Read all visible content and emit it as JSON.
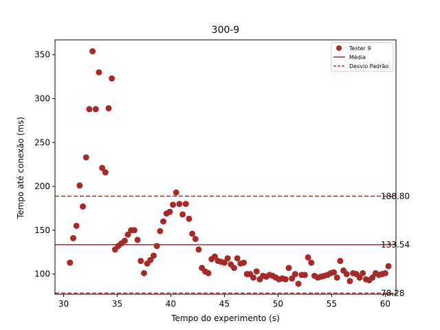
{
  "chart_data": {
    "type": "scatter",
    "title": "300-9",
    "xlabel": "Tempo do experimento (s)",
    "ylabel": "Tempo até conexão (ms)",
    "xlim": [
      29.2,
      61.0
    ],
    "ylim": [
      77,
      367
    ],
    "xticks": [
      30,
      35,
      40,
      45,
      50,
      55,
      60
    ],
    "yticks": [
      100,
      150,
      200,
      250,
      300,
      350
    ],
    "grid": false,
    "legend_position": "top-right",
    "colors": {
      "points": "#a52a2a",
      "mean": "#a52a2a",
      "std": "#a52a2a"
    },
    "series": [
      {
        "name": "Tester 9",
        "x": [
          30.6,
          30.9,
          31.2,
          31.5,
          31.8,
          32.1,
          32.4,
          32.7,
          33.0,
          33.3,
          33.6,
          33.9,
          34.2,
          34.5,
          34.8,
          35.1,
          35.4,
          35.7,
          36.0,
          36.3,
          36.6,
          36.9,
          37.2,
          37.5,
          37.8,
          38.1,
          38.4,
          38.7,
          39.0,
          39.3,
          39.6,
          39.9,
          40.2,
          40.5,
          40.8,
          41.1,
          41.4,
          41.7,
          42.0,
          42.3,
          42.6,
          42.9,
          43.2,
          43.5,
          43.8,
          44.1,
          44.4,
          44.7,
          45.0,
          45.3,
          45.6,
          45.9,
          46.2,
          46.5,
          46.8,
          47.1,
          47.4,
          47.7,
          48.0,
          48.3,
          48.6,
          48.9,
          49.2,
          49.5,
          49.8,
          50.1,
          50.4,
          50.7,
          51.0,
          51.3,
          51.6,
          51.9,
          52.2,
          52.5,
          52.8,
          53.1,
          53.4,
          53.7,
          54.0,
          54.3,
          54.6,
          54.9,
          55.2,
          55.5,
          55.8,
          56.1,
          56.4,
          56.7,
          57.0,
          57.3,
          57.6,
          57.9,
          58.2,
          58.5,
          58.8,
          59.1,
          59.4,
          59.7,
          60.0,
          60.3
        ],
        "y": [
          113,
          141,
          155,
          201,
          177,
          233,
          288,
          354,
          288,
          330,
          221,
          216,
          289,
          323,
          128,
          132,
          135,
          138,
          145,
          150,
          150,
          139,
          115,
          101,
          112,
          116,
          121,
          132,
          149,
          160,
          169,
          171,
          179,
          193,
          180,
          168,
          180,
          163,
          146,
          140,
          128,
          107,
          103,
          101,
          117,
          120,
          115,
          114,
          113,
          118,
          111,
          107,
          118,
          112,
          113,
          100,
          100,
          96,
          103,
          94,
          98,
          97,
          99,
          98,
          96,
          94,
          95,
          94,
          107,
          95,
          100,
          89,
          99,
          99,
          119,
          113,
          98,
          96,
          97,
          98,
          99,
          101,
          102,
          96,
          115,
          104,
          100,
          92,
          101,
          100,
          96,
          101,
          94,
          93,
          96,
          101,
          99,
          100,
          101,
          109
        ]
      }
    ],
    "reference_lines": [
      {
        "name": "Média",
        "y": 133.54,
        "label": "133.54",
        "style": "solid"
      },
      {
        "name": "Desvio Padrão",
        "y": 188.8,
        "label": "188.80",
        "style": "dashed"
      },
      {
        "name": "Desvio Padrão",
        "y": 78.28,
        "label": "78.28",
        "style": "dashed"
      }
    ],
    "legend": [
      {
        "label": "Tester 9",
        "kind": "marker"
      },
      {
        "label": "Média",
        "kind": "solid-line"
      },
      {
        "label": "Desvio Padrão",
        "kind": "dashed-line"
      }
    ]
  }
}
